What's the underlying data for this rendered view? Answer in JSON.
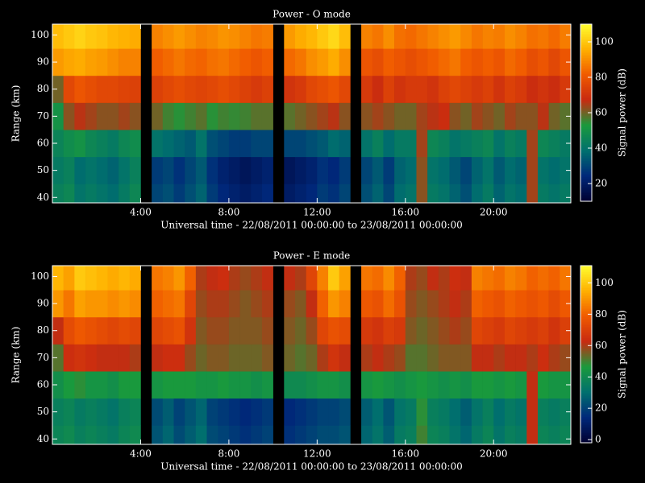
{
  "chart_data": [
    {
      "type": "heatmap",
      "title": "Power - O mode",
      "x_label": "Universal time - 22/08/2011 00:00:00 to 23/08/2011 00:00:00",
      "y_label": "Range (km)",
      "colorbar_label": "Signal power (dB)",
      "x": [
        0.25,
        0.75,
        1.25,
        1.75,
        2.25,
        2.75,
        3.25,
        3.75,
        4.25,
        4.75,
        5.25,
        5.75,
        6.25,
        6.75,
        7.25,
        7.75,
        8.25,
        8.75,
        9.25,
        9.75,
        10.25,
        10.75,
        11.25,
        11.75,
        12.25,
        12.75,
        13.25,
        13.75,
        14.25,
        14.75,
        15.25,
        15.75,
        16.25,
        16.75,
        17.25,
        17.75,
        18.25,
        18.75,
        19.25,
        19.75,
        20.25,
        20.75,
        21.25,
        21.75,
        22.25,
        22.75,
        23.25
      ],
      "y": [
        40,
        50,
        60,
        70,
        80,
        90,
        100
      ],
      "z": [
        [
          44,
          46,
          40,
          42,
          40,
          38,
          42,
          46,
          null,
          30,
          32,
          28,
          32,
          36,
          28,
          24,
          22,
          20,
          22,
          24,
          null,
          20,
          22,
          24,
          28,
          26,
          30,
          null,
          32,
          36,
          30,
          38,
          40,
          62,
          42,
          40,
          36,
          32,
          38,
          42,
          36,
          40,
          38,
          64,
          42,
          40,
          42
        ],
        [
          42,
          44,
          38,
          40,
          38,
          36,
          40,
          44,
          null,
          28,
          30,
          26,
          30,
          34,
          26,
          22,
          20,
          18,
          20,
          22,
          null,
          18,
          20,
          22,
          26,
          24,
          28,
          null,
          30,
          34,
          28,
          36,
          38,
          62,
          40,
          38,
          34,
          30,
          36,
          40,
          34,
          38,
          36,
          64,
          40,
          38,
          40
        ],
        [
          45,
          48,
          50,
          46,
          44,
          42,
          46,
          48,
          null,
          40,
          38,
          36,
          34,
          40,
          32,
          30,
          28,
          28,
          30,
          30,
          null,
          30,
          30,
          32,
          34,
          38,
          36,
          null,
          40,
          44,
          38,
          42,
          42,
          64,
          46,
          44,
          40,
          42,
          44,
          46,
          40,
          44,
          42,
          64,
          46,
          44,
          42
        ],
        [
          50,
          62,
          66,
          64,
          62,
          62,
          64,
          62,
          null,
          60,
          56,
          54,
          56,
          58,
          54,
          56,
          55,
          56,
          58,
          58,
          null,
          58,
          60,
          62,
          64,
          66,
          62,
          null,
          62,
          64,
          62,
          60,
          60,
          64,
          66,
          68,
          62,
          60,
          64,
          62,
          60,
          64,
          62,
          62,
          66,
          60,
          58
        ],
        [
          60,
          76,
          80,
          78,
          76,
          76,
          75,
          74,
          null,
          74,
          76,
          78,
          76,
          75,
          76,
          78,
          76,
          74,
          72,
          74,
          null,
          70,
          72,
          76,
          78,
          80,
          76,
          null,
          72,
          68,
          74,
          70,
          72,
          72,
          70,
          74,
          76,
          74,
          72,
          74,
          70,
          74,
          72,
          68,
          70,
          68,
          72
        ],
        [
          92,
          94,
          95,
          93,
          92,
          90,
          88,
          88,
          null,
          82,
          84,
          86,
          84,
          83,
          85,
          86,
          84,
          82,
          80,
          82,
          null,
          84,
          86,
          90,
          92,
          95,
          90,
          null,
          80,
          78,
          82,
          80,
          78,
          80,
          82,
          84,
          86,
          82,
          80,
          82,
          80,
          84,
          82,
          78,
          80,
          76,
          80
        ],
        [
          98,
          100,
          102,
          100,
          99,
          97,
          96,
          95,
          null,
          88,
          90,
          92,
          90,
          88,
          89,
          91,
          90,
          88,
          86,
          87,
          null,
          92,
          95,
          97,
          100,
          103,
          98,
          null,
          88,
          86,
          90,
          85,
          84,
          86,
          88,
          90,
          92,
          89,
          86,
          88,
          87,
          90,
          88,
          85,
          86,
          84,
          87
        ]
      ],
      "xlim": [
        0,
        23.5
      ],
      "xticks": [
        {
          "value": 4,
          "label": "4:00"
        },
        {
          "value": 8,
          "label": "8:00"
        },
        {
          "value": 12,
          "label": "12:00"
        },
        {
          "value": 16,
          "label": "16:00"
        },
        {
          "value": 20,
          "label": "20:00"
        }
      ],
      "ylim": [
        38,
        104
      ],
      "yticks": [
        40,
        50,
        60,
        70,
        80,
        90,
        100
      ],
      "zlim": [
        10,
        110
      ],
      "zticks": [
        20,
        40,
        60,
        80,
        100
      ],
      "colorscale": [
        "#000030",
        "#00287a",
        "#00706e",
        "#1a9a3c",
        "#c82a10",
        "#f05a00",
        "#ffb000",
        "#ffff30"
      ]
    },
    {
      "type": "heatmap",
      "title": "Power - E mode",
      "x_label": "Universal time - 22/08/2011 00:00:00 to 23/08/2011 00:00:00",
      "y_label": "Range (km)",
      "colorbar_label": "Signal power (dB)",
      "x": [
        0.25,
        0.75,
        1.25,
        1.75,
        2.25,
        2.75,
        3.25,
        3.75,
        4.25,
        4.75,
        5.25,
        5.75,
        6.25,
        6.75,
        7.25,
        7.75,
        8.25,
        8.75,
        9.25,
        9.75,
        10.25,
        10.75,
        11.25,
        11.75,
        12.25,
        12.75,
        13.25,
        13.75,
        14.25,
        14.75,
        15.25,
        15.75,
        16.25,
        16.75,
        17.25,
        17.75,
        18.25,
        18.75,
        19.25,
        19.75,
        20.25,
        20.75,
        21.25,
        21.75,
        22.25,
        22.75,
        23.25
      ],
      "y": [
        40,
        50,
        60,
        70,
        80,
        90,
        100
      ],
      "z": [
        [
          38,
          40,
          36,
          38,
          36,
          34,
          38,
          40,
          null,
          24,
          28,
          22,
          26,
          30,
          22,
          20,
          18,
          16,
          18,
          20,
          null,
          16,
          18,
          20,
          22,
          22,
          24,
          null,
          28,
          32,
          26,
          34,
          36,
          50,
          38,
          36,
          32,
          28,
          34,
          38,
          32,
          36,
          34,
          62,
          38,
          36,
          38
        ],
        [
          36,
          38,
          34,
          36,
          34,
          32,
          36,
          38,
          null,
          22,
          26,
          20,
          24,
          28,
          20,
          18,
          16,
          14,
          16,
          18,
          null,
          14,
          16,
          18,
          20,
          20,
          22,
          null,
          26,
          30,
          24,
          32,
          34,
          48,
          36,
          34,
          30,
          26,
          32,
          36,
          30,
          34,
          32,
          62,
          36,
          34,
          36
        ],
        [
          42,
          46,
          48,
          44,
          44,
          42,
          46,
          46,
          null,
          44,
          46,
          46,
          46,
          44,
          44,
          46,
          44,
          44,
          42,
          44,
          null,
          40,
          40,
          42,
          44,
          44,
          42,
          null,
          44,
          46,
          44,
          42,
          44,
          46,
          44,
          42,
          44,
          42,
          46,
          46,
          44,
          46,
          44,
          62,
          46,
          44,
          44
        ],
        [
          52,
          64,
          66,
          64,
          62,
          62,
          62,
          60,
          null,
          62,
          64,
          64,
          58,
          54,
          56,
          56,
          54,
          54,
          54,
          56,
          null,
          54,
          52,
          54,
          60,
          66,
          62,
          null,
          60,
          62,
          60,
          58,
          52,
          52,
          54,
          56,
          56,
          56,
          62,
          62,
          60,
          62,
          62,
          60,
          64,
          60,
          58
        ],
        [
          62,
          74,
          78,
          76,
          74,
          72,
          74,
          72,
          null,
          72,
          74,
          76,
          66,
          56,
          58,
          58,
          56,
          56,
          56,
          58,
          null,
          56,
          54,
          58,
          72,
          76,
          74,
          null,
          68,
          66,
          70,
          68,
          56,
          54,
          56,
          58,
          60,
          58,
          72,
          70,
          68,
          72,
          70,
          68,
          70,
          66,
          70
        ],
        [
          90,
          84,
          92,
          90,
          90,
          88,
          90,
          88,
          null,
          80,
          82,
          84,
          72,
          58,
          60,
          60,
          58,
          56,
          58,
          60,
          null,
          58,
          56,
          62,
          80,
          90,
          86,
          null,
          78,
          76,
          82,
          76,
          58,
          56,
          58,
          60,
          62,
          60,
          80,
          78,
          76,
          80,
          78,
          76,
          78,
          74,
          78
        ],
        [
          96,
          92,
          100,
          98,
          96,
          94,
          96,
          94,
          null,
          84,
          86,
          90,
          80,
          60,
          62,
          64,
          60,
          58,
          60,
          62,
          null,
          62,
          60,
          72,
          86,
          100,
          92,
          null,
          84,
          82,
          88,
          80,
          60,
          58,
          62,
          60,
          64,
          62,
          86,
          84,
          82,
          86,
          84,
          80,
          82,
          80,
          84
        ]
      ],
      "xlim": [
        0,
        23.5
      ],
      "xticks": [
        {
          "value": 4,
          "label": "4:00"
        },
        {
          "value": 8,
          "label": "8:00"
        },
        {
          "value": 12,
          "label": "12:00"
        },
        {
          "value": 16,
          "label": "16:00"
        },
        {
          "value": 20,
          "label": "20:00"
        }
      ],
      "ylim": [
        38,
        104
      ],
      "yticks": [
        40,
        50,
        60,
        70,
        80,
        90,
        100
      ],
      "zlim": [
        -2,
        111
      ],
      "zticks": [
        0,
        20,
        40,
        60,
        80,
        100
      ],
      "colorscale": [
        "#000030",
        "#00287a",
        "#00706e",
        "#1a9a3c",
        "#c82a10",
        "#f05a00",
        "#ffb000",
        "#ffff30"
      ]
    }
  ]
}
